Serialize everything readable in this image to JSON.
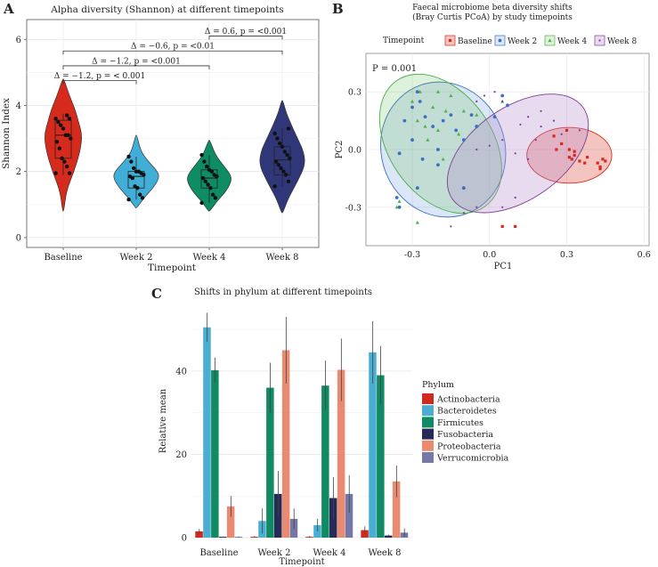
{
  "panels": {
    "A": {
      "label": "A",
      "chart_data": {
        "type": "violin",
        "title": "Alpha diversity (Shannon) at different timepoints",
        "xlabel": "Timepoint",
        "ylabel": "Shannon Index",
        "ylim": [
          -0.3,
          6.6
        ],
        "yticks": [
          0,
          2,
          4,
          6
        ],
        "categories": [
          "Baseline",
          "Week 2",
          "Week 4",
          "Week 8"
        ],
        "colors": [
          "#d62a1c",
          "#41aed8",
          "#0e8c63",
          "#2f3778"
        ],
        "violins": [
          {
            "name": "Baseline",
            "min": 0.8,
            "max": 4.8,
            "width_profile": [
              [
                0.8,
                0.02
              ],
              [
                1.4,
                0.1
              ],
              [
                2.0,
                0.35
              ],
              [
                2.6,
                0.55
              ],
              [
                3.1,
                0.62
              ],
              [
                3.5,
                0.5
              ],
              [
                3.9,
                0.38
              ],
              [
                4.3,
                0.2
              ],
              [
                4.8,
                0.02
              ]
            ],
            "box": {
              "q1": 2.4,
              "median": 3.1,
              "q3": 3.55,
              "whisker_low": 1.9,
              "whisker_high": 3.75
            },
            "points": [
              1.95,
              1.95,
              2.15,
              2.3,
              2.4,
              2.7,
              2.9,
              3.0,
              3.1,
              3.1,
              3.3,
              3.4,
              3.5,
              3.6,
              3.6,
              3.7
            ]
          },
          {
            "name": "Week 2",
            "min": 0.9,
            "max": 3.1,
            "width_profile": [
              [
                0.9,
                0.02
              ],
              [
                1.2,
                0.25
              ],
              [
                1.5,
                0.55
              ],
              [
                1.8,
                0.75
              ],
              [
                2.0,
                0.7
              ],
              [
                2.3,
                0.4
              ],
              [
                2.6,
                0.15
              ],
              [
                3.1,
                0.02
              ]
            ],
            "box": {
              "q1": 1.5,
              "median": 1.85,
              "q3": 2.0,
              "whisker_low": 1.15,
              "whisker_high": 2.45
            },
            "points": [
              1.15,
              1.2,
              1.3,
              1.5,
              1.55,
              1.8,
              1.85,
              1.9,
              1.95,
              2.0,
              2.0,
              2.1,
              2.3,
              2.45
            ]
          },
          {
            "name": "Week 4",
            "min": 0.8,
            "max": 2.95,
            "width_profile": [
              [
                0.8,
                0.02
              ],
              [
                1.1,
                0.25
              ],
              [
                1.4,
                0.55
              ],
              [
                1.7,
                0.72
              ],
              [
                1.9,
                0.7
              ],
              [
                2.2,
                0.45
              ],
              [
                2.5,
                0.2
              ],
              [
                2.95,
                0.02
              ]
            ],
            "box": {
              "q1": 1.5,
              "median": 1.8,
              "q3": 2.05,
              "whisker_low": 1.05,
              "whisker_high": 2.5
            },
            "points": [
              1.05,
              1.2,
              1.3,
              1.5,
              1.6,
              1.7,
              1.8,
              1.85,
              1.9,
              2.0,
              2.05,
              2.15,
              2.3,
              2.5
            ]
          },
          {
            "name": "Week 8",
            "min": 0.75,
            "max": 4.15,
            "width_profile": [
              [
                0.75,
                0.02
              ],
              [
                1.2,
                0.2
              ],
              [
                1.7,
                0.5
              ],
              [
                2.2,
                0.75
              ],
              [
                2.6,
                0.7
              ],
              [
                3.0,
                0.5
              ],
              [
                3.4,
                0.3
              ],
              [
                3.8,
                0.12
              ],
              [
                4.15,
                0.02
              ]
            ],
            "box": {
              "q1": 1.9,
              "median": 2.35,
              "q3": 2.75,
              "whisker_low": 1.55,
              "whisker_high": 3.3
            },
            "points": [
              1.55,
              1.7,
              1.9,
              2.0,
              2.1,
              2.2,
              2.3,
              2.4,
              2.5,
              2.6,
              2.75,
              2.85,
              3.0,
              3.15,
              3.3
            ]
          }
        ],
        "comparisons": [
          {
            "from": "Week 4",
            "to": "Week 8",
            "y": 6.1,
            "label": "Δ = 0.6, p = <0.001"
          },
          {
            "from": "Baseline",
            "to": "Week 8",
            "y": 5.65,
            "label": "Δ = −0.6, p = <0.01"
          },
          {
            "from": "Baseline",
            "to": "Week 4",
            "y": 5.2,
            "label": "Δ = −1.2, p = <0.001"
          },
          {
            "from": "Baseline",
            "to": "Week 2",
            "y": 4.75,
            "label": "Δ = −1.2, p = < 0.001"
          }
        ]
      }
    },
    "B": {
      "label": "B",
      "chart_data": {
        "type": "scatter",
        "title": "Faecal microbiome beta diversity shifts",
        "subtitle": "(Bray Curtis PCoA) by study timepoints",
        "xlabel": "PC1",
        "ylabel": "PC2",
        "xlim": [
          -0.48,
          0.62
        ],
        "ylim": [
          -0.5,
          0.5
        ],
        "xticks": [
          -0.3,
          0.0,
          0.3,
          0.6
        ],
        "xtick_labels": [
          "-0.3",
          "0.0",
          "0.3",
          "0.6"
        ],
        "yticks": [
          -0.3,
          0.0,
          0.3
        ],
        "ytick_labels": [
          "-0.3",
          "0.0",
          "0.3"
        ],
        "annotation": "P = 0.001",
        "legend": {
          "title": "Timepoint",
          "position": "top"
        },
        "series": [
          {
            "name": "Baseline",
            "marker": "square",
            "color": "#d62a1c",
            "fill": "rgba(214,42,28,0.28)",
            "ellipse": {
              "cx": 0.31,
              "cy": -0.03,
              "rx": 0.165,
              "ry": 0.145,
              "angle": 0
            },
            "points": [
              [
                0.25,
                0.07
              ],
              [
                0.28,
                0.03
              ],
              [
                0.3,
                0.1
              ],
              [
                0.31,
                0.0
              ],
              [
                0.32,
                -0.05
              ],
              [
                0.33,
                -0.03
              ],
              [
                0.35,
                -0.06
              ],
              [
                0.37,
                -0.07
              ],
              [
                0.38,
                -0.04
              ],
              [
                0.42,
                -0.07
              ],
              [
                0.43,
                -0.1
              ],
              [
                0.44,
                -0.05
              ],
              [
                0.45,
                -0.06
              ],
              [
                0.43,
                -0.09
              ],
              [
                0.31,
                -0.04
              ],
              [
                0.26,
                0.0
              ],
              [
                0.1,
                -0.4
              ],
              [
                0.05,
                -0.4
              ],
              [
                0.33,
                -0.01
              ]
            ]
          },
          {
            "name": "Week 2",
            "marker": "circle",
            "color": "#3a6fc4",
            "fill": "rgba(90,140,215,0.22)",
            "ellipse": {
              "cx": -0.18,
              "cy": 0.0,
              "rx": 0.24,
              "ry": 0.355,
              "angle": 20
            },
            "points": [
              [
                -0.28,
                0.3
              ],
              [
                -0.27,
                0.25
              ],
              [
                -0.3,
                0.22
              ],
              [
                -0.25,
                0.17
              ],
              [
                -0.33,
                0.15
              ],
              [
                -0.22,
                0.12
              ],
              [
                -0.18,
                0.15
              ],
              [
                -0.3,
                0.05
              ],
              [
                -0.35,
                -0.02
              ],
              [
                -0.26,
                -0.05
              ],
              [
                -0.2,
                0.0
              ],
              [
                -0.13,
                0.1
              ],
              [
                -0.1,
                0.05
              ],
              [
                -0.05,
                0.12
              ],
              [
                0.02,
                0.17
              ],
              [
                0.05,
                0.28
              ],
              [
                0.07,
                0.23
              ],
              [
                -0.28,
                -0.2
              ],
              [
                -0.35,
                -0.3
              ],
              [
                -0.36,
                -0.25
              ],
              [
                -0.1,
                -0.2
              ],
              [
                -0.07,
                0.18
              ],
              [
                -0.15,
                0.18
              ],
              [
                -0.2,
                -0.08
              ]
            ]
          },
          {
            "name": "Week 4",
            "marker": "triangle",
            "color": "#4daf4a",
            "fill": "rgba(100,190,90,0.22)",
            "ellipse": {
              "cx": -0.19,
              "cy": 0.03,
              "rx": 0.2,
              "ry": 0.4,
              "angle": 35
            },
            "points": [
              [
                -0.27,
                0.3
              ],
              [
                -0.2,
                0.3
              ],
              [
                -0.15,
                0.28
              ],
              [
                -0.3,
                0.25
              ],
              [
                -0.22,
                0.22
              ],
              [
                -0.17,
                0.2
              ],
              [
                -0.28,
                0.15
              ],
              [
                -0.25,
                0.12
              ],
              [
                -0.2,
                0.1
              ],
              [
                -0.1,
                0.2
              ],
              [
                -0.05,
                0.18
              ],
              [
                0.05,
                0.25
              ],
              [
                -0.35,
                -0.27
              ],
              [
                -0.36,
                -0.3
              ],
              [
                -0.28,
                -0.38
              ],
              [
                -0.24,
                0.05
              ],
              [
                -0.12,
                0.08
              ],
              [
                -0.18,
                -0.05
              ]
            ]
          },
          {
            "name": "Week 8",
            "marker": "point",
            "color": "#7b3f95",
            "fill": "rgba(185,140,205,0.32)",
            "ellipse": {
              "cx": 0.11,
              "cy": -0.02,
              "rx": 0.31,
              "ry": 0.24,
              "angle": 35
            },
            "points": [
              [
                0.05,
                0.25
              ],
              [
                0.02,
                0.3
              ],
              [
                -0.05,
                0.25
              ],
              [
                0.12,
                0.13
              ],
              [
                0.15,
                0.17
              ],
              [
                0.2,
                0.2
              ],
              [
                0.2,
                0.12
              ],
              [
                0.25,
                0.15
              ],
              [
                0.28,
                0.08
              ],
              [
                0.18,
                0.05
              ],
              [
                0.05,
                0.05
              ],
              [
                0.0,
                0.02
              ],
              [
                -0.05,
                0.0
              ],
              [
                0.1,
                -0.02
              ],
              [
                0.15,
                -0.05
              ],
              [
                -0.05,
                -0.3
              ],
              [
                -0.1,
                -0.33
              ],
              [
                0.05,
                -0.3
              ],
              [
                0.1,
                -0.25
              ],
              [
                -0.15,
                -0.4
              ],
              [
                0.35,
                0.1
              ],
              [
                -0.02,
                0.28
              ]
            ]
          }
        ]
      }
    },
    "C": {
      "label": "C",
      "chart_data": {
        "type": "bar",
        "title": "Shifts in phylum at different timepoints",
        "xlabel": "Timepoint",
        "ylabel": "Relative mean",
        "ylim": [
          0,
          56
        ],
        "yticks": [
          0,
          20,
          40
        ],
        "categories": [
          "Baseline",
          "Week 2",
          "Week 4",
          "Week 8"
        ],
        "legend": {
          "title": "Phylum",
          "position": "right"
        },
        "series": [
          {
            "name": "Actinobacteria",
            "color": "#d02a1e",
            "values": [
              1.5,
              0.2,
              0.2,
              1.8
            ],
            "errors": [
              0.6,
              0.2,
              0.2,
              0.9
            ]
          },
          {
            "name": "Bacteroidetes",
            "color": "#4aaed3",
            "values": [
              50.5,
              4.0,
              3.0,
              44.5
            ],
            "errors": [
              3.5,
              3.0,
              1.5,
              7.5
            ]
          },
          {
            "name": "Firmicutes",
            "color": "#0f8a63",
            "values": [
              40.2,
              36.0,
              36.5,
              39.0
            ],
            "errors": [
              3.0,
              6.0,
              6.0,
              7.0
            ]
          },
          {
            "name": "Fusobacteria",
            "color": "#262a56",
            "values": [
              0.2,
              10.5,
              9.5,
              0.5
            ],
            "errors": [
              0.1,
              5.5,
              5.0,
              0.2
            ]
          },
          {
            "name": "Proteobacteria",
            "color": "#ea8a70",
            "values": [
              7.5,
              45.0,
              40.3,
              13.5
            ],
            "errors": [
              2.5,
              8.0,
              7.5,
              3.8
            ]
          },
          {
            "name": "Verrucomicrobia",
            "color": "#7577a7",
            "values": [
              0.2,
              4.5,
              10.5,
              1.2
            ],
            "errors": [
              0.1,
              2.5,
              4.5,
              1.0
            ]
          }
        ]
      }
    }
  }
}
